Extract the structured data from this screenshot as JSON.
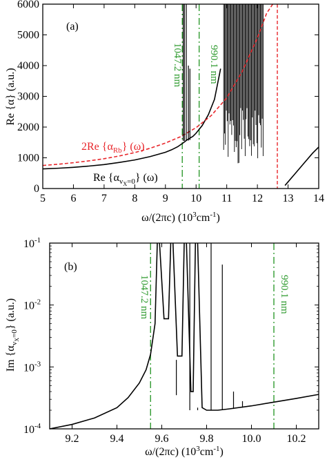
{
  "chart_data": [
    {
      "panel_label": "(a)",
      "type": "line",
      "xlabel_main": "ω/(2πc)",
      "xlabel_units": "(10",
      "xlabel_units_exp": "3",
      "xlabel_units_tail": "cm",
      "xlabel_units_tail_exp": "-1",
      "xlabel_close": ")",
      "ylabel": "Re {α} (a.u.)",
      "xlim": [
        5,
        14
      ],
      "ylim": [
        0,
        6000
      ],
      "xticks": [
        5,
        6,
        7,
        8,
        9,
        10,
        11,
        12,
        13,
        14
      ],
      "xtick_labels": [
        "5",
        "6",
        "7",
        "8",
        "9",
        "10",
        "11",
        "12",
        "13",
        "14"
      ],
      "yticks": [
        0,
        1000,
        2000,
        3000,
        4000,
        5000,
        6000
      ],
      "ytick_labels": [
        "0",
        "1000",
        "2000",
        "3000",
        "4000",
        "5000",
        "6000"
      ],
      "legend_rb_prefix": "2Re {α",
      "legend_rb_sub": "Rb",
      "legend_rb_suffix": "} (ω)",
      "legend_vx_prefix": "Re {α",
      "legend_vx_sub": "v",
      "legend_vx_subsub": "X",
      "legend_vx_sub_tail": "=0",
      "legend_vx_suffix": "} (ω)",
      "annotations": [
        {
          "text": "1047.2 nm",
          "x": 9.55
        },
        {
          "text": "990.1 nm",
          "x": 10.1
        }
      ],
      "colors": {
        "series_black": "#000000",
        "series_red": "#e8262b",
        "marker_green": "#2e9a2e"
      },
      "series": [
        {
          "color": "black",
          "style": "solid",
          "x": [
            5.0,
            5.5,
            6.0,
            6.5,
            7.0,
            7.5,
            8.0,
            8.5,
            9.0,
            9.2,
            9.4,
            9.5,
            9.6,
            9.7,
            9.8,
            9.9,
            10.0,
            10.2,
            10.4,
            10.6,
            10.8
          ],
          "y": [
            640,
            660,
            690,
            730,
            780,
            850,
            930,
            1040,
            1180,
            1260,
            1360,
            1430,
            1500,
            1580,
            1640,
            1700,
            1800,
            2050,
            2400,
            2900,
            3900
          ]
        },
        {
          "color": "red",
          "style": "dashed",
          "x": [
            5.0,
            5.5,
            6.0,
            6.5,
            7.0,
            7.5,
            8.0,
            8.5,
            9.0,
            9.5,
            10.0,
            10.5,
            11.0,
            11.5,
            12.0,
            12.3,
            12.5
          ],
          "y": [
            750,
            790,
            840,
            900,
            970,
            1060,
            1170,
            1310,
            1480,
            1690,
            1980,
            2380,
            2950,
            3800,
            4900,
            5700,
            6000
          ]
        },
        {
          "color": "black",
          "style": "solid",
          "x": [
            12.9,
            13.2,
            13.5,
            13.8,
            14.0
          ],
          "y": [
            100,
            450,
            800,
            1150,
            1350
          ]
        }
      ],
      "spikes": [
        {
          "x": 9.58,
          "y_from": 1550,
          "y_to": 6000
        },
        {
          "x": 9.62,
          "y_from": 1550,
          "y_to": 6000
        },
        {
          "x": 9.68,
          "y_from": 1560,
          "y_to": 6000
        },
        {
          "x": 9.75,
          "y_from": 1560,
          "y_to": 4000
        },
        {
          "x": 9.8,
          "y_from": 1580,
          "y_to": 3900
        }
      ],
      "dense_band": {
        "x_from": 10.9,
        "x_to": 12.2,
        "y_from": 800,
        "y_to": 6000
      },
      "vlines": [
        {
          "x": 9.55,
          "color": "green",
          "style": "dashdot"
        },
        {
          "x": 10.1,
          "color": "green",
          "style": "dashdot"
        },
        {
          "x": 12.65,
          "color": "red",
          "style": "dashed"
        }
      ]
    },
    {
      "panel_label": "(b)",
      "type": "line",
      "yscale": "log",
      "xlabel_main": "ω/(2πc)",
      "xlabel_units": "(10",
      "xlabel_units_exp": "3",
      "xlabel_units_tail": "cm",
      "xlabel_units_tail_exp": "-1",
      "xlabel_close": ")",
      "ylabel_prefix": "Im {α",
      "ylabel_sub": "v",
      "ylabel_subsub": "X",
      "ylabel_sub_tail": "=0",
      "ylabel_suffix": "} (a.u.)",
      "xlim": [
        9.1,
        10.3
      ],
      "ylim": [
        0.0001,
        0.1
      ],
      "xticks": [
        9.2,
        9.4,
        9.6,
        9.8,
        10.0,
        10.2
      ],
      "xtick_labels": [
        "9.2",
        "9.4",
        "9.6",
        "9.8",
        "10.0",
        "10.2"
      ],
      "yticks": [
        0.0001,
        0.001,
        0.01,
        0.1
      ],
      "ytick_base": [
        "10",
        "10",
        "10",
        "10"
      ],
      "ytick_exp": [
        "-4",
        "-3",
        "-2",
        "-1"
      ],
      "annotations": [
        {
          "text": "1047.2 nm",
          "x": 9.55
        },
        {
          "text": "990.1 nm",
          "x": 10.1
        }
      ],
      "series": [
        {
          "color": "black",
          "style": "solid",
          "x": [
            9.1,
            9.2,
            9.3,
            9.4,
            9.45,
            9.5,
            9.53,
            9.55,
            9.57,
            9.58
          ],
          "y": [
            0.0001,
            0.000118,
            0.00015,
            0.00022,
            0.00032,
            0.00055,
            0.0009,
            0.0016,
            0.005,
            0.1
          ]
        },
        {
          "color": "black",
          "style": "solid",
          "x": [
            9.59,
            9.61,
            9.63,
            9.64
          ],
          "y": [
            0.1,
            0.006,
            0.006,
            0.1
          ]
        },
        {
          "color": "black",
          "style": "solid",
          "x": [
            9.65,
            9.67,
            9.69,
            9.7
          ],
          "y": [
            0.1,
            0.0015,
            0.0015,
            0.1
          ]
        },
        {
          "color": "black",
          "style": "solid",
          "x": [
            9.71,
            9.73,
            9.74,
            9.75
          ],
          "y": [
            0.1,
            0.0004,
            0.0004,
            0.1
          ]
        },
        {
          "color": "black",
          "style": "solid",
          "x": [
            9.76,
            9.78,
            9.8,
            9.85,
            9.9,
            10.0,
            10.1,
            10.2,
            10.3
          ],
          "y": [
            0.1,
            0.00022,
            0.0002,
            0.0002,
            0.00021,
            0.000235,
            0.00027,
            0.00031,
            0.00036
          ]
        }
      ],
      "spikes": [
        {
          "x": 9.665,
          "y_from": 0.00035,
          "y_to": 0.0013
        },
        {
          "x": 9.725,
          "y_from": 0.0002,
          "y_to": 0.1
        },
        {
          "x": 9.76,
          "y_from": 0.0002,
          "y_to": 0.00022
        },
        {
          "x": 9.82,
          "y_from": 0.0002,
          "y_to": 0.1
        },
        {
          "x": 9.87,
          "y_from": 0.0002,
          "y_to": 0.045
        },
        {
          "x": 9.92,
          "y_from": 0.00021,
          "y_to": 0.0004
        },
        {
          "x": 9.96,
          "y_from": 0.00022,
          "y_to": 0.00028
        }
      ],
      "vlines": [
        {
          "x": 9.55,
          "color": "green",
          "style": "dashdot"
        },
        {
          "x": 10.1,
          "color": "green",
          "style": "dashdot"
        }
      ]
    }
  ]
}
